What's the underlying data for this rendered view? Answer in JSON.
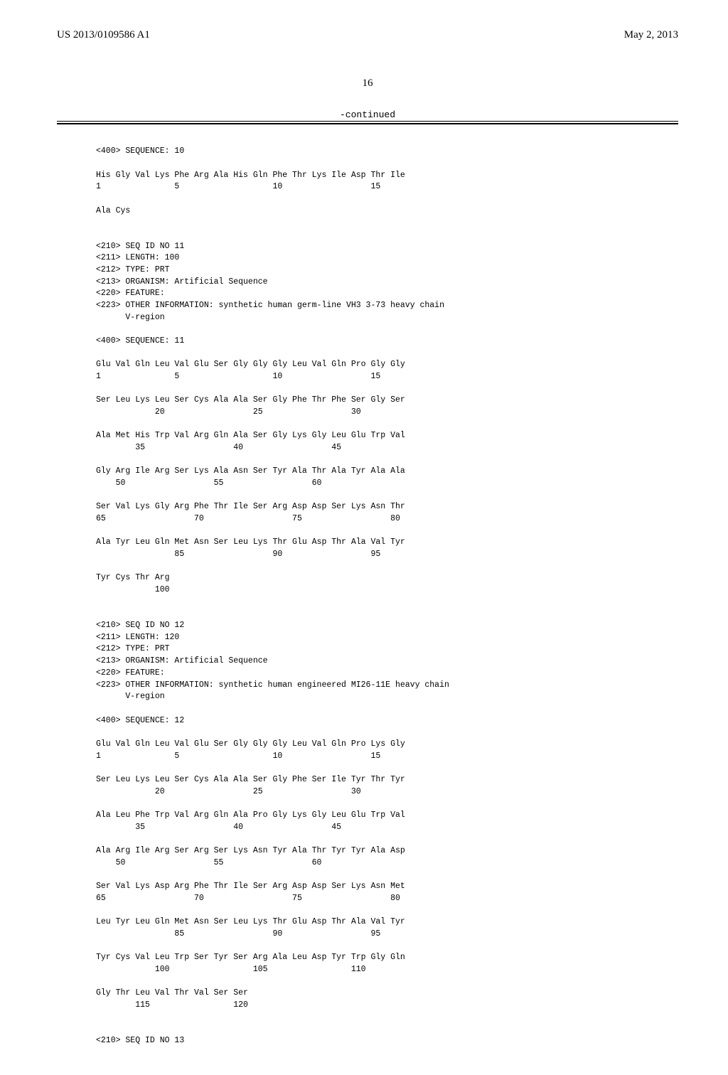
{
  "header": {
    "left": "US 2013/0109586 A1",
    "right": "May 2, 2013"
  },
  "pageNumber": "16",
  "continued": "-continued",
  "seq10": {
    "seqLine": "<400> SEQUENCE: 10",
    "row1": "His Gly Val Lys Phe Arg Ala His Gln Phe Thr Lys Ile Asp Thr Ile",
    "num1": "1               5                   10                  15",
    "row2": "Ala Cys"
  },
  "seq11": {
    "h1": "<210> SEQ ID NO 11",
    "h2": "<211> LENGTH: 100",
    "h3": "<212> TYPE: PRT",
    "h4": "<213> ORGANISM: Artificial Sequence",
    "h5": "<220> FEATURE:",
    "h6": "<223> OTHER INFORMATION: synthetic human germ-line VH3 3-73 heavy chain",
    "h7": "      V-region",
    "seqLine": "<400> SEQUENCE: 11",
    "r1": "Glu Val Gln Leu Val Glu Ser Gly Gly Gly Leu Val Gln Pro Gly Gly",
    "n1": "1               5                   10                  15",
    "r2": "Ser Leu Lys Leu Ser Cys Ala Ala Ser Gly Phe Thr Phe Ser Gly Ser",
    "n2": "            20                  25                  30",
    "r3": "Ala Met His Trp Val Arg Gln Ala Ser Gly Lys Gly Leu Glu Trp Val",
    "n3": "        35                  40                  45",
    "r4": "Gly Arg Ile Arg Ser Lys Ala Asn Ser Tyr Ala Thr Ala Tyr Ala Ala",
    "n4": "    50                  55                  60",
    "r5": "Ser Val Lys Gly Arg Phe Thr Ile Ser Arg Asp Asp Ser Lys Asn Thr",
    "n5": "65                  70                  75                  80",
    "r6": "Ala Tyr Leu Gln Met Asn Ser Leu Lys Thr Glu Asp Thr Ala Val Tyr",
    "n6": "                85                  90                  95",
    "r7": "Tyr Cys Thr Arg",
    "n7": "            100"
  },
  "seq12": {
    "h1": "<210> SEQ ID NO 12",
    "h2": "<211> LENGTH: 120",
    "h3": "<212> TYPE: PRT",
    "h4": "<213> ORGANISM: Artificial Sequence",
    "h5": "<220> FEATURE:",
    "h6": "<223> OTHER INFORMATION: synthetic human engineered MI26-11E heavy chain",
    "h7": "      V-region",
    "seqLine": "<400> SEQUENCE: 12",
    "r1": "Glu Val Gln Leu Val Glu Ser Gly Gly Gly Leu Val Gln Pro Lys Gly",
    "n1": "1               5                   10                  15",
    "r2": "Ser Leu Lys Leu Ser Cys Ala Ala Ser Gly Phe Ser Ile Tyr Thr Tyr",
    "n2": "            20                  25                  30",
    "r3": "Ala Leu Phe Trp Val Arg Gln Ala Pro Gly Lys Gly Leu Glu Trp Val",
    "n3": "        35                  40                  45",
    "r4": "Ala Arg Ile Arg Ser Arg Ser Lys Asn Tyr Ala Thr Tyr Tyr Ala Asp",
    "n4": "    50                  55                  60",
    "r5": "Ser Val Lys Asp Arg Phe Thr Ile Ser Arg Asp Asp Ser Lys Asn Met",
    "n5": "65                  70                  75                  80",
    "r6": "Leu Tyr Leu Gln Met Asn Ser Leu Lys Thr Glu Asp Thr Ala Val Tyr",
    "n6": "                85                  90                  95",
    "r7": "Tyr Cys Val Leu Trp Ser Tyr Ser Arg Ala Leu Asp Tyr Trp Gly Gln",
    "n7": "            100                 105                 110",
    "r8": "Gly Thr Leu Val Thr Val Ser Ser",
    "n8": "        115                 120"
  },
  "seq13": {
    "h1": "<210> SEQ ID NO 13"
  }
}
